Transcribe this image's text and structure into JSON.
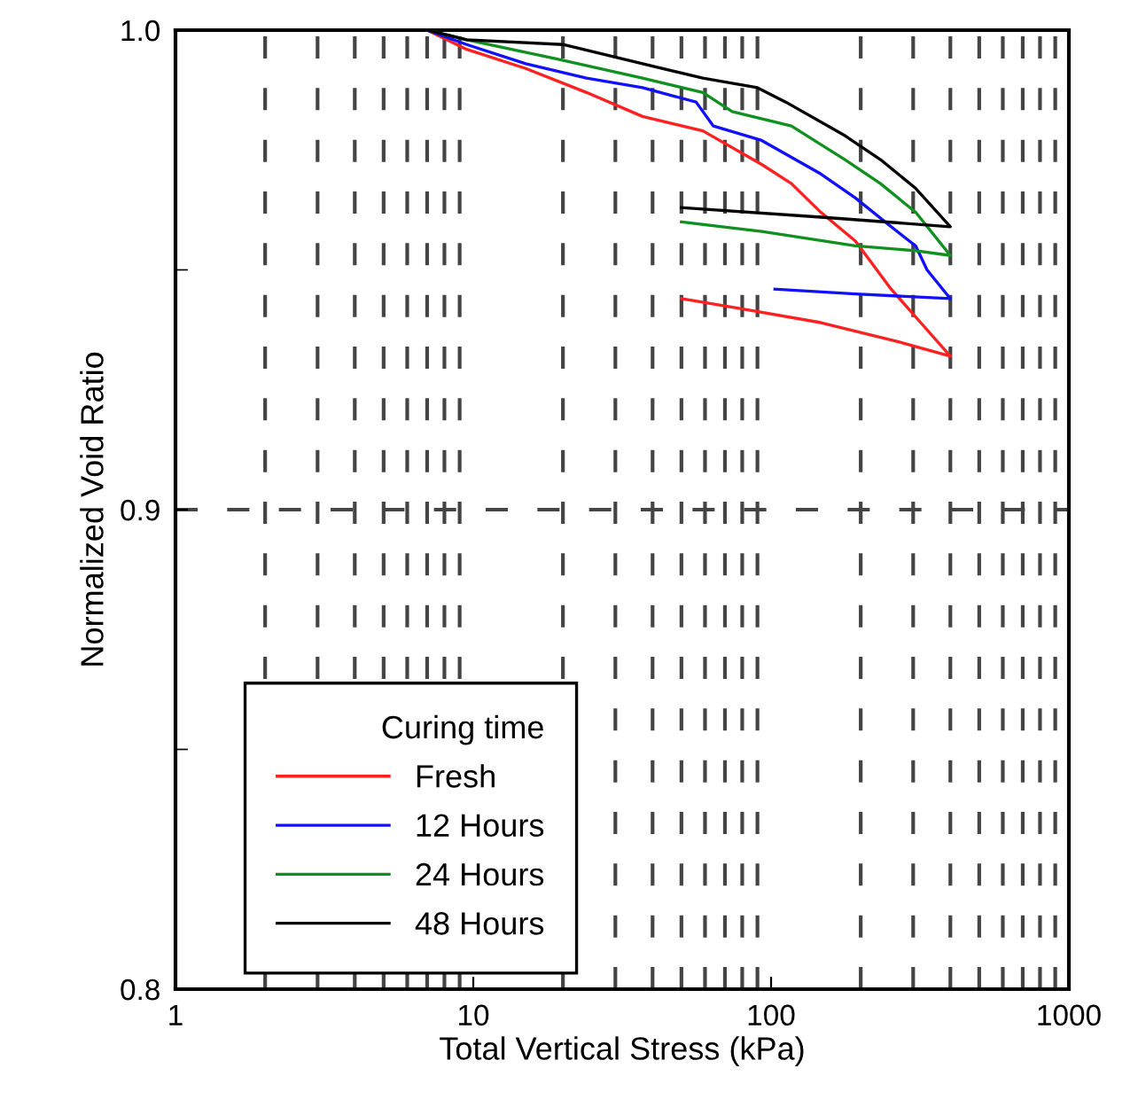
{
  "chart_data": {
    "type": "line",
    "xlabel": "Total Vertical Stress (kPa)",
    "ylabel": "Normalized Void Ratio",
    "legend_title": "Curing time",
    "log": "x",
    "xlim": [
      1,
      1000
    ],
    "xticks": [
      1,
      10,
      100,
      1000
    ],
    "ylim": [
      0.8,
      1.0
    ],
    "yticks": [
      0.8,
      {
        "value": 0.85,
        "label": null
      },
      0.9,
      {
        "value": 0.95,
        "label": null
      },
      {
        "value": 1.0,
        "label": "1.0"
      }
    ],
    "grid": true,
    "legend": "bottom left",
    "marker": "none",
    "line_style": "solid",
    "series": [
      {
        "name": "Fresh",
        "color": "#ff2020",
        "x": [
          7,
          9.5,
          15,
          24,
          37,
          59,
          93,
          117,
          147,
          192,
          253,
          318,
          400,
          268,
          147,
          78,
          50
        ],
        "values": [
          1.0,
          0.996,
          0.992,
          0.987,
          0.982,
          0.979,
          0.972,
          0.968,
          0.962,
          0.956,
          0.946,
          0.939,
          0.932,
          0.935,
          0.939,
          0.942,
          0.944
        ]
      },
      {
        "name": "12 Hours",
        "color": "#1010ff",
        "x": [
          7,
          9.5,
          15,
          24,
          37,
          56,
          64,
          93,
          147,
          192,
          253,
          306,
          334,
          400,
          192,
          103
        ],
        "values": [
          1.0,
          0.997,
          0.993,
          0.99,
          0.988,
          0.985,
          0.98,
          0.977,
          0.97,
          0.965,
          0.959,
          0.955,
          0.95,
          0.944,
          0.945,
          0.946
        ]
      },
      {
        "name": "24 Hours",
        "color": "#10901e",
        "x": [
          7,
          9.5,
          19,
          37,
          59,
          74,
          117,
          177,
          233,
          306,
          400,
          306,
          192,
          93,
          50
        ],
        "values": [
          1.0,
          0.998,
          0.994,
          0.99,
          0.987,
          0.983,
          0.98,
          0.973,
          0.968,
          0.962,
          0.953,
          0.954,
          0.955,
          0.958,
          0.96
        ]
      },
      {
        "name": "48 Hours",
        "color": "#000000",
        "x": [
          7,
          9.5,
          20,
          37,
          59,
          90,
          112,
          177,
          233,
          306,
          400,
          147,
          50
        ],
        "values": [
          1.0,
          0.998,
          0.997,
          0.993,
          0.99,
          0.988,
          0.985,
          0.978,
          0.973,
          0.967,
          0.959,
          0.961,
          0.963
        ]
      }
    ]
  }
}
